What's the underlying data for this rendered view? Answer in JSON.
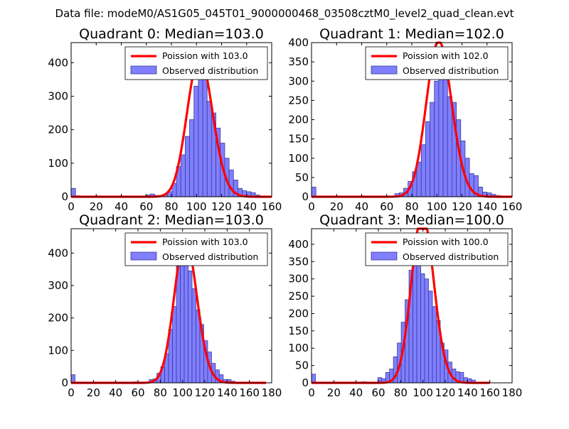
{
  "figure": {
    "suptitle": "Data file: modeM0/AS1G05_045T01_9000000468_03508cztM0_level2_quad_clean.evt"
  },
  "colors": {
    "hist_fill": "#7f7fff",
    "hist_edge": "#3a3a9a",
    "poisson_line": "#ff0000"
  },
  "chart_data": [
    {
      "type": "bar",
      "title": "Quadrant 0: Median=103.0",
      "median": 103.0,
      "xlim": [
        0,
        160
      ],
      "ylim": [
        0,
        460
      ],
      "xticks": [
        0,
        20,
        40,
        60,
        80,
        100,
        120,
        140,
        160
      ],
      "yticks": [
        0,
        100,
        200,
        300,
        400
      ],
      "bin_width": 3.5,
      "legend": {
        "line": "Poission with 103.0",
        "bars": "Observed distribution",
        "position": "top-right"
      },
      "bins": [
        {
          "x": 0,
          "v": 25
        },
        {
          "x": 3.5,
          "v": 3
        },
        {
          "x": 59.5,
          "v": 5
        },
        {
          "x": 63,
          "v": 8
        },
        {
          "x": 66.5,
          "v": 4
        },
        {
          "x": 73.5,
          "v": 5
        },
        {
          "x": 77,
          "v": 15
        },
        {
          "x": 80.5,
          "v": 40
        },
        {
          "x": 84,
          "v": 90
        },
        {
          "x": 87.5,
          "v": 125
        },
        {
          "x": 91,
          "v": 180
        },
        {
          "x": 94.5,
          "v": 230
        },
        {
          "x": 98,
          "v": 330
        },
        {
          "x": 101.5,
          "v": 360
        },
        {
          "x": 105,
          "v": 390
        },
        {
          "x": 108.5,
          "v": 285
        },
        {
          "x": 112,
          "v": 250
        },
        {
          "x": 115.5,
          "v": 205
        },
        {
          "x": 119,
          "v": 160
        },
        {
          "x": 122.5,
          "v": 115
        },
        {
          "x": 126,
          "v": 80
        },
        {
          "x": 129.5,
          "v": 50
        },
        {
          "x": 133,
          "v": 25
        },
        {
          "x": 136.5,
          "v": 18
        },
        {
          "x": 140,
          "v": 15
        },
        {
          "x": 143.5,
          "v": 12
        },
        {
          "x": 147,
          "v": 5
        }
      ],
      "poisson_x_end": 160
    },
    {
      "type": "bar",
      "title": "Quadrant 1: Median=102.0",
      "median": 102.0,
      "xlim": [
        0,
        160
      ],
      "ylim": [
        0,
        400
      ],
      "xticks": [
        0,
        20,
        40,
        60,
        80,
        100,
        120,
        140,
        160
      ],
      "yticks": [
        0,
        50,
        100,
        150,
        200,
        250,
        300,
        350,
        400
      ],
      "bin_width": 3.5,
      "legend": {
        "line": "Poission with 102.0",
        "bars": "Observed distribution",
        "position": "top-right"
      },
      "bins": [
        {
          "x": 0,
          "v": 25
        },
        {
          "x": 66.5,
          "v": 8
        },
        {
          "x": 70,
          "v": 10
        },
        {
          "x": 73.5,
          "v": 22
        },
        {
          "x": 77,
          "v": 40
        },
        {
          "x": 80.5,
          "v": 65
        },
        {
          "x": 84,
          "v": 90
        },
        {
          "x": 87.5,
          "v": 135
        },
        {
          "x": 91,
          "v": 195
        },
        {
          "x": 94.5,
          "v": 245
        },
        {
          "x": 98,
          "v": 300
        },
        {
          "x": 101.5,
          "v": 345
        },
        {
          "x": 105,
          "v": 320
        },
        {
          "x": 108.5,
          "v": 260
        },
        {
          "x": 112,
          "v": 245
        },
        {
          "x": 115.5,
          "v": 200
        },
        {
          "x": 119,
          "v": 145
        },
        {
          "x": 122.5,
          "v": 100
        },
        {
          "x": 126,
          "v": 60
        },
        {
          "x": 129.5,
          "v": 55
        },
        {
          "x": 133,
          "v": 25
        },
        {
          "x": 136.5,
          "v": 12
        },
        {
          "x": 140,
          "v": 10
        },
        {
          "x": 143.5,
          "v": 6
        },
        {
          "x": 147,
          "v": 3
        }
      ],
      "poisson_x_end": 160
    },
    {
      "type": "bar",
      "title": "Quadrant 2: Median=103.0",
      "median": 103.0,
      "xlim": [
        0,
        180
      ],
      "ylim": [
        0,
        475
      ],
      "xticks": [
        0,
        20,
        40,
        60,
        80,
        100,
        120,
        140,
        160,
        180
      ],
      "yticks": [
        0,
        100,
        200,
        300,
        400
      ],
      "bin_width": 3.5,
      "legend": {
        "line": "Poission with 103.0",
        "bars": "Observed distribution",
        "position": "top-right"
      },
      "bins": [
        {
          "x": 0,
          "v": 25
        },
        {
          "x": 56,
          "v": 3
        },
        {
          "x": 70,
          "v": 10
        },
        {
          "x": 73.5,
          "v": 12
        },
        {
          "x": 77,
          "v": 30
        },
        {
          "x": 80.5,
          "v": 50
        },
        {
          "x": 84,
          "v": 90
        },
        {
          "x": 87.5,
          "v": 165
        },
        {
          "x": 91,
          "v": 235
        },
        {
          "x": 94.5,
          "v": 400
        },
        {
          "x": 98,
          "v": 415
        },
        {
          "x": 101.5,
          "v": 365
        },
        {
          "x": 105,
          "v": 345
        },
        {
          "x": 108.5,
          "v": 290
        },
        {
          "x": 112,
          "v": 225
        },
        {
          "x": 115.5,
          "v": 180
        },
        {
          "x": 119,
          "v": 130
        },
        {
          "x": 122.5,
          "v": 95
        },
        {
          "x": 126,
          "v": 60
        },
        {
          "x": 129.5,
          "v": 40
        },
        {
          "x": 133,
          "v": 25
        },
        {
          "x": 136.5,
          "v": 10
        },
        {
          "x": 140,
          "v": 10
        },
        {
          "x": 143.5,
          "v": 5
        }
      ],
      "poisson_x_end": 175
    },
    {
      "type": "bar",
      "title": "Quadrant 3: Median=100.0",
      "median": 100.0,
      "xlim": [
        0,
        180
      ],
      "ylim": [
        0,
        445
      ],
      "xticks": [
        0,
        20,
        40,
        60,
        80,
        100,
        120,
        140,
        160,
        180
      ],
      "yticks": [
        0,
        50,
        100,
        150,
        200,
        250,
        300,
        350,
        400
      ],
      "bin_width": 3.5,
      "legend": {
        "line": "Poission with 100.0",
        "bars": "Observed distribution",
        "position": "top-right"
      },
      "bins": [
        {
          "x": 0,
          "v": 25
        },
        {
          "x": 45.5,
          "v": 3
        },
        {
          "x": 59.5,
          "v": 15
        },
        {
          "x": 63,
          "v": 12
        },
        {
          "x": 66.5,
          "v": 30
        },
        {
          "x": 70,
          "v": 40
        },
        {
          "x": 73.5,
          "v": 75
        },
        {
          "x": 77,
          "v": 115
        },
        {
          "x": 80.5,
          "v": 175
        },
        {
          "x": 84,
          "v": 240
        },
        {
          "x": 87.5,
          "v": 325
        },
        {
          "x": 91,
          "v": 380
        },
        {
          "x": 94.5,
          "v": 360
        },
        {
          "x": 98,
          "v": 315
        },
        {
          "x": 101.5,
          "v": 300
        },
        {
          "x": 105,
          "v": 265
        },
        {
          "x": 108.5,
          "v": 220
        },
        {
          "x": 112,
          "v": 180
        },
        {
          "x": 115.5,
          "v": 115
        },
        {
          "x": 119,
          "v": 95
        },
        {
          "x": 122.5,
          "v": 60
        },
        {
          "x": 126,
          "v": 40
        },
        {
          "x": 129.5,
          "v": 32
        },
        {
          "x": 133,
          "v": 30
        },
        {
          "x": 136.5,
          "v": 15
        },
        {
          "x": 140,
          "v": 12
        },
        {
          "x": 143.5,
          "v": 8
        }
      ],
      "poisson_x_end": 160
    }
  ]
}
